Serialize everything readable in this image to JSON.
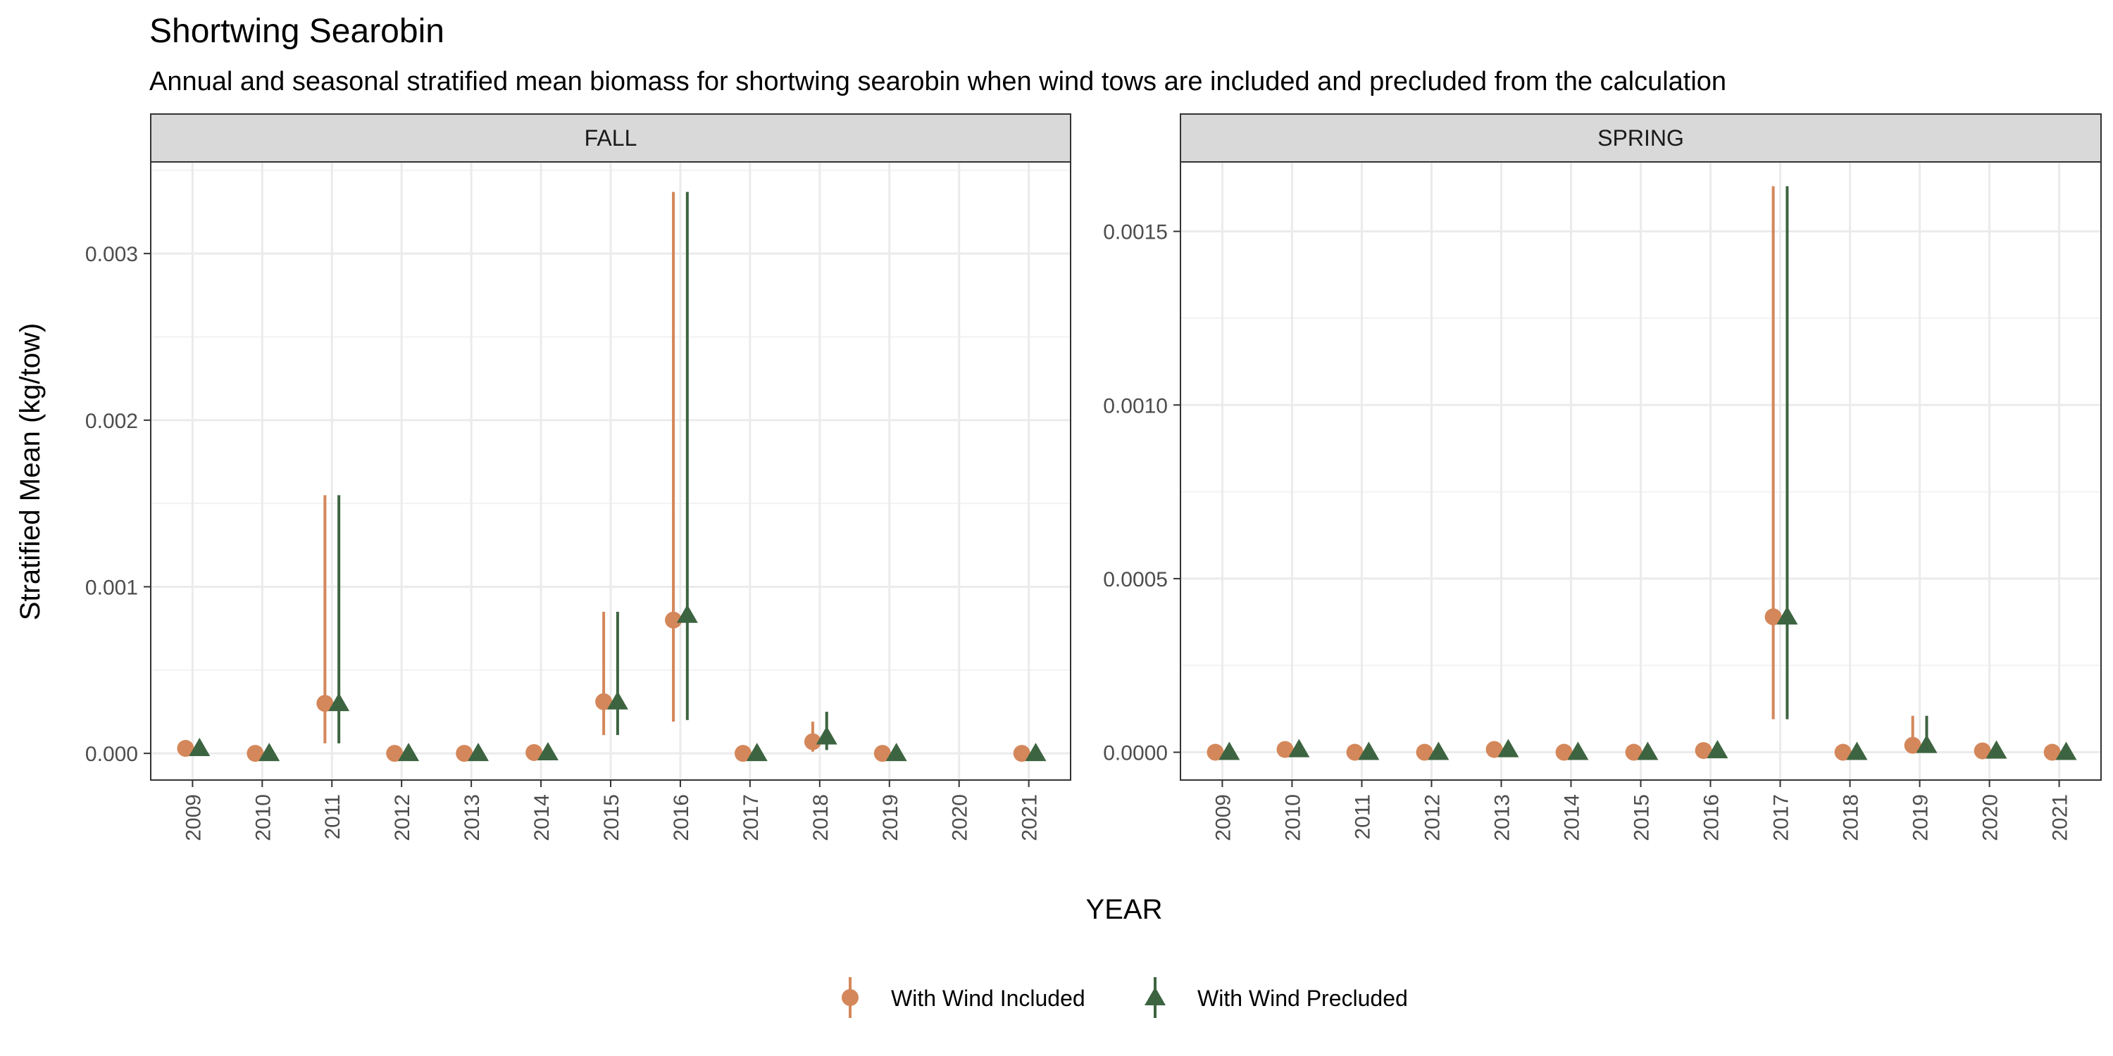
{
  "chart_data": {
    "type": "scatter",
    "title": "Shortwing Searobin",
    "subtitle": "Annual and seasonal stratified mean biomass for shortwing searobin when wind tows are included and precluded from the calculation",
    "xlabel": "YEAR",
    "ylabel": "Stratified Mean (kg/tow)",
    "grid": true,
    "legend_position": "bottom",
    "colors": {
      "included": "#D4875A",
      "precluded": "#3D6440"
    },
    "legend": [
      "With Wind Included",
      "With Wind Precluded"
    ],
    "panels": [
      {
        "name": "FALL",
        "ylim": [
          -0.00016,
          0.00355
        ],
        "yticks": [
          0,
          0.001,
          0.002,
          0.003
        ],
        "ytick_labels": [
          "0.000",
          "0.001",
          "0.002",
          "0.003"
        ],
        "x": [
          "2009",
          "2010",
          "2011",
          "2012",
          "2013",
          "2014",
          "2015",
          "2016",
          "2017",
          "2018",
          "2019",
          "2020",
          "2021"
        ],
        "series": [
          {
            "name": "With Wind Included",
            "x": [
              "2009",
              "2010",
              "2011",
              "2012",
              "2013",
              "2014",
              "2015",
              "2016",
              "2017",
              "2018",
              "2019",
              "2021"
            ],
            "mean": [
              3e-05,
              0,
              0.0003,
              0,
              0,
              5e-06,
              0.00031,
              0.0008,
              0,
              7e-05,
              0,
              0
            ],
            "lower": [
              null,
              null,
              6e-05,
              null,
              null,
              null,
              0.00011,
              0.00019,
              null,
              1e-05,
              null,
              null
            ],
            "upper": [
              null,
              null,
              0.00155,
              null,
              null,
              null,
              0.00085,
              0.00337,
              null,
              0.00019,
              null,
              null
            ]
          },
          {
            "name": "With Wind Precluded",
            "x": [
              "2009",
              "2010",
              "2011",
              "2012",
              "2013",
              "2014",
              "2015",
              "2016",
              "2017",
              "2018",
              "2019",
              "2021"
            ],
            "mean": [
              3e-05,
              0,
              0.0003,
              0,
              0,
              5e-06,
              0.00031,
              0.00083,
              0,
              0.0001,
              0,
              0
            ],
            "lower": [
              null,
              null,
              6e-05,
              null,
              null,
              null,
              0.00011,
              0.0002,
              null,
              2e-05,
              null,
              null
            ],
            "upper": [
              null,
              null,
              0.00155,
              null,
              null,
              null,
              0.00085,
              0.00337,
              null,
              0.00025,
              null,
              null
            ]
          }
        ]
      },
      {
        "name": "SPRING",
        "ylim": [
          -8e-05,
          0.0017
        ],
        "yticks": [
          0,
          0.0005,
          0.001,
          0.0015
        ],
        "ytick_labels": [
          "0.0000",
          "0.0005",
          "0.0010",
          "0.0015"
        ],
        "x": [
          "2009",
          "2010",
          "2011",
          "2012",
          "2013",
          "2014",
          "2015",
          "2016",
          "2017",
          "2018",
          "2019",
          "2020",
          "2021"
        ],
        "series": [
          {
            "name": "With Wind Included",
            "x": [
              "2009",
              "2010",
              "2011",
              "2012",
              "2013",
              "2014",
              "2015",
              "2016",
              "2017",
              "2018",
              "2019",
              "2020",
              "2021"
            ],
            "mean": [
              0,
              8e-06,
              0,
              0,
              8e-06,
              0,
              0,
              5e-06,
              0.00039,
              0,
              2e-05,
              4e-06,
              0
            ],
            "lower": [
              null,
              null,
              null,
              null,
              null,
              null,
              null,
              null,
              9.5e-05,
              null,
              1e-06,
              null,
              null
            ],
            "upper": [
              null,
              null,
              null,
              null,
              null,
              null,
              null,
              null,
              0.00163,
              null,
              0.000105,
              null,
              null
            ]
          },
          {
            "name": "With Wind Precluded",
            "x": [
              "2009",
              "2010",
              "2011",
              "2012",
              "2013",
              "2014",
              "2015",
              "2016",
              "2017",
              "2018",
              "2019",
              "2020",
              "2021"
            ],
            "mean": [
              0,
              8e-06,
              0,
              0,
              8e-06,
              0,
              0,
              5e-06,
              0.00039,
              0,
              2e-05,
              4e-06,
              0
            ],
            "lower": [
              null,
              null,
              null,
              null,
              null,
              null,
              null,
              null,
              9.5e-05,
              null,
              1e-06,
              null,
              null
            ],
            "upper": [
              null,
              null,
              null,
              null,
              null,
              null,
              null,
              null,
              0.00163,
              null,
              0.000105,
              null,
              null
            ]
          }
        ]
      }
    ]
  }
}
